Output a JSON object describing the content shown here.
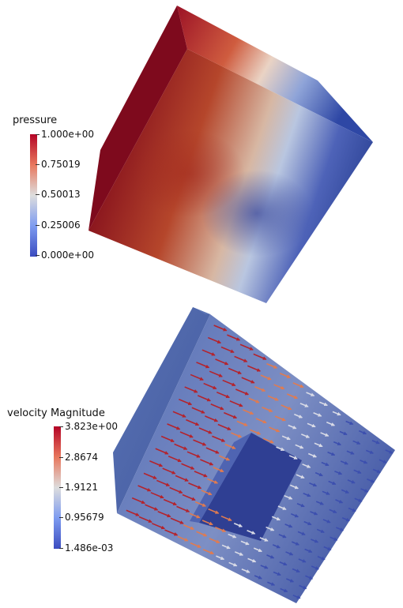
{
  "colorbars": [
    {
      "title": "pressure",
      "ticks": [
        "1.000e+00",
        "0.75019",
        "0.50013",
        "0.25006",
        "0.000e+00"
      ],
      "colors": {
        "max": "#b40426",
        "mid": "#dddddd",
        "min": "#3b4cc0"
      }
    },
    {
      "title": "velocity Magnitude",
      "ticks": [
        "3.823e+00",
        "2.8674",
        "1.9121",
        "0.95679",
        "1.486e-03"
      ],
      "colors": {
        "max": "#b40426",
        "mid": "#dddddd",
        "min": "#3b4cc0"
      }
    }
  ],
  "colormap": "cool-to-warm"
}
